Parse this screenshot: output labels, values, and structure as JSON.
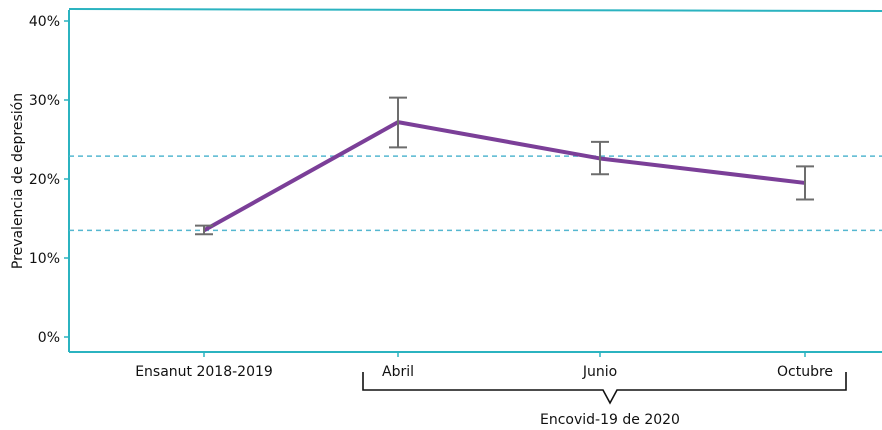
{
  "chart_data": {
    "type": "line",
    "categories": [
      "Ensanut 2018-2019",
      "Abril",
      "Junio",
      "Octubre"
    ],
    "series": [
      {
        "values": [
          13.5,
          27.2,
          22.6,
          19.5
        ],
        "error_low": [
          13.0,
          24.0,
          20.6,
          17.4
        ],
        "error_high": [
          14.1,
          30.3,
          24.7,
          21.6
        ]
      }
    ],
    "reference_lines": [
      22.9,
      13.5
    ],
    "ylabel": "Prevalencia de depresión",
    "yticks": [
      "0%",
      "10%",
      "20%",
      "30%",
      "40%"
    ],
    "ylim": [
      0,
      40
    ],
    "group_label": "Encovid-19 de 2020",
    "grid": false,
    "colors": {
      "line": "#7b3f98",
      "error_bars": "#6d6d6d",
      "reference": "#55b7d0",
      "frame": "#2bb3c0"
    }
  }
}
